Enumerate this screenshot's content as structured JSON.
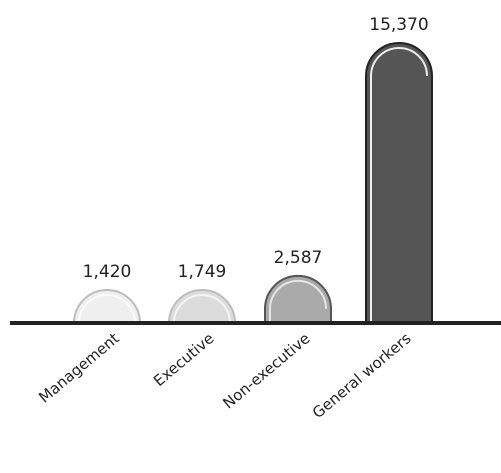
{
  "chart_data": {
    "type": "bar",
    "categories": [
      "Management",
      "Executive",
      "Non-executive",
      "General workers"
    ],
    "values": [
      1420,
      1749,
      2587,
      15370
    ],
    "value_labels": [
      "1,420",
      "1,749",
      "2,587",
      "15,370"
    ],
    "colors": [
      "#efefef",
      "#dcdcdc",
      "#aaaaaa",
      "#555555"
    ],
    "ylim": [
      0,
      15370
    ],
    "grid": false,
    "legend": "none"
  }
}
